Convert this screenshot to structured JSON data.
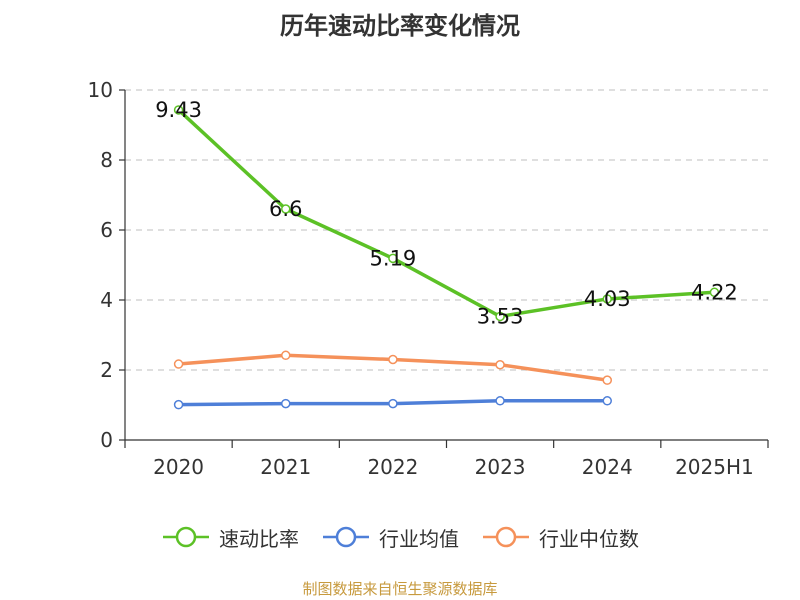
{
  "chart_data": {
    "type": "line",
    "title": "历年速动比率变化情况",
    "categories": [
      "2020",
      "2021",
      "2022",
      "2023",
      "2024",
      "2025H1"
    ],
    "ylim": [
      0,
      10
    ],
    "yticks": [
      0,
      2,
      4,
      6,
      8,
      10
    ],
    "grid": "horizontal dashed",
    "legend_position": "bottom",
    "series": [
      {
        "name": "速动比率",
        "color": "#5cc126",
        "values": [
          9.43,
          6.6,
          5.19,
          3.53,
          4.03,
          4.22
        ],
        "data_labels": [
          "9.43",
          "6.6",
          "5.19",
          "3.53",
          "4.03",
          "4.22"
        ]
      },
      {
        "name": "行业均值",
        "color": "#4e7fd8",
        "values": [
          1.01,
          1.04,
          1.04,
          1.12,
          1.12,
          null
        ]
      },
      {
        "name": "行业中位数",
        "color": "#f5915a",
        "values": [
          2.17,
          2.42,
          2.3,
          2.15,
          1.71,
          null
        ]
      }
    ]
  },
  "source_note": "制图数据来自恒生聚源数据库"
}
